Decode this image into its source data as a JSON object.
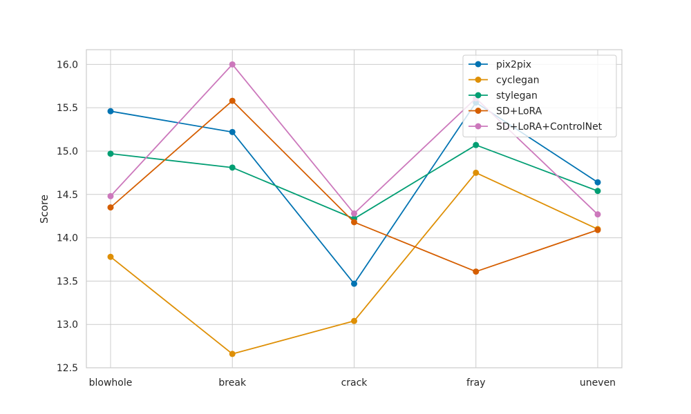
{
  "chart_data": {
    "type": "line",
    "title": "",
    "xlabel": "",
    "ylabel": "Score",
    "categories": [
      "blowhole",
      "break",
      "crack",
      "fray",
      "uneven"
    ],
    "ylim": [
      12.5,
      16.17
    ],
    "yticks": [
      12.5,
      13.0,
      13.5,
      14.0,
      14.5,
      15.0,
      15.5,
      16.0
    ],
    "ytick_labels": [
      "12.5",
      "13.0",
      "13.5",
      "14.0",
      "14.5",
      "15.0",
      "15.5",
      "16.0"
    ],
    "grid": true,
    "legend_position": "top-right",
    "series": [
      {
        "name": "pix2pix",
        "color": "#0173b2",
        "values": [
          15.46,
          15.22,
          13.47,
          15.56,
          14.64
        ]
      },
      {
        "name": "cyclegan",
        "color": "#de8f05",
        "values": [
          13.78,
          12.66,
          13.04,
          14.75,
          14.1
        ]
      },
      {
        "name": "stylegan",
        "color": "#029e73",
        "values": [
          14.97,
          14.81,
          14.22,
          15.07,
          14.54
        ]
      },
      {
        "name": "SD+LoRA",
        "color": "#d55e00",
        "values": [
          14.35,
          15.58,
          14.18,
          13.61,
          14.09
        ]
      },
      {
        "name": "SD+LoRA+ControlNet",
        "color": "#cc78bc",
        "values": [
          14.48,
          16.0,
          14.28,
          15.61,
          14.27
        ]
      }
    ]
  }
}
